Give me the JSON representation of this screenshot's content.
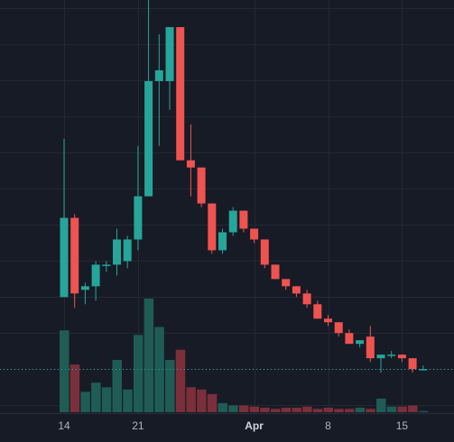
{
  "chart_data": {
    "type": "candlestick",
    "title": "",
    "xlabel": "",
    "ylabel": "",
    "x_ticks": [
      {
        "label": "14",
        "index": 0,
        "bold": false
      },
      {
        "label": "21",
        "index": 7,
        "bold": false
      },
      {
        "label": "Apr",
        "index": 18,
        "bold": true
      },
      {
        "label": "8",
        "index": 25,
        "bold": false
      },
      {
        "label": "15",
        "index": 32,
        "bold": false
      }
    ],
    "ylim": [
      0,
      100
    ],
    "volume_lim": [
      0,
      100
    ],
    "last_price": 12.0,
    "grid": true,
    "colors": {
      "background": "#171b26",
      "grid": "#242833",
      "up": "#26a69a",
      "down": "#ef5350",
      "up_volume": "#1f5c56",
      "down_volume": "#7a2f3a",
      "last_price_line": "#26a69a",
      "axis_text": "#b2b5be"
    },
    "candles": [
      {
        "o": 32,
        "h": 76,
        "l": 32,
        "c": 54
      },
      {
        "o": 54,
        "h": 55,
        "l": 29,
        "c": 33
      },
      {
        "o": 34,
        "h": 36,
        "l": 30,
        "c": 35
      },
      {
        "o": 35,
        "h": 42,
        "l": 31,
        "c": 41
      },
      {
        "o": 41,
        "h": 42,
        "l": 39,
        "c": 41
      },
      {
        "o": 41,
        "h": 51,
        "l": 38,
        "c": 48
      },
      {
        "o": 42,
        "h": 49,
        "l": 40,
        "c": 48
      },
      {
        "o": 48,
        "h": 74,
        "l": 45,
        "c": 60
      },
      {
        "o": 60,
        "h": 117,
        "l": 60,
        "c": 92
      },
      {
        "o": 92,
        "h": 105,
        "l": 74,
        "c": 95
      },
      {
        "o": 92,
        "h": 107,
        "l": 84,
        "c": 107
      },
      {
        "o": 107,
        "h": 107,
        "l": 70,
        "c": 70
      },
      {
        "o": 70,
        "h": 80,
        "l": 60,
        "c": 68
      },
      {
        "o": 68,
        "h": 68,
        "l": 57,
        "c": 58
      },
      {
        "o": 58,
        "h": 58,
        "l": 44,
        "c": 45
      },
      {
        "o": 45,
        "h": 51,
        "l": 44,
        "c": 50
      },
      {
        "o": 50,
        "h": 57,
        "l": 49,
        "c": 56
      },
      {
        "o": 56,
        "h": 56,
        "l": 50,
        "c": 51
      },
      {
        "o": 51,
        "h": 51,
        "l": 47,
        "c": 48
      },
      {
        "o": 48,
        "h": 48,
        "l": 40,
        "c": 41
      },
      {
        "o": 41,
        "h": 41,
        "l": 37,
        "c": 37
      },
      {
        "o": 37,
        "h": 37,
        "l": 34,
        "c": 35
      },
      {
        "o": 35,
        "h": 35,
        "l": 32,
        "c": 33
      },
      {
        "o": 33,
        "h": 34,
        "l": 29,
        "c": 30
      },
      {
        "o": 30,
        "h": 31,
        "l": 26,
        "c": 26
      },
      {
        "o": 26,
        "h": 27,
        "l": 24,
        "c": 25
      },
      {
        "o": 25,
        "h": 25,
        "l": 21,
        "c": 22
      },
      {
        "o": 22,
        "h": 23,
        "l": 19,
        "c": 19
      },
      {
        "o": 19,
        "h": 20,
        "l": 18,
        "c": 20
      },
      {
        "o": 21,
        "h": 24,
        "l": 14,
        "c": 15
      },
      {
        "o": 15,
        "h": 16,
        "l": 11,
        "c": 16
      },
      {
        "o": 16,
        "h": 17,
        "l": 15,
        "c": 16
      },
      {
        "o": 16,
        "h": 16,
        "l": 14,
        "c": 15
      },
      {
        "o": 15,
        "h": 15,
        "l": 11,
        "c": 12
      },
      {
        "o": 12,
        "h": 13,
        "l": 12,
        "c": 12
      }
    ],
    "volume": [
      72,
      42,
      18,
      26,
      22,
      46,
      20,
      68,
      100,
      75,
      46,
      55,
      22,
      20,
      16,
      8,
      6,
      6,
      5,
      4,
      3,
      4,
      4,
      5,
      3,
      4,
      3,
      3,
      4,
      3,
      12,
      5,
      5,
      6,
      1
    ]
  }
}
